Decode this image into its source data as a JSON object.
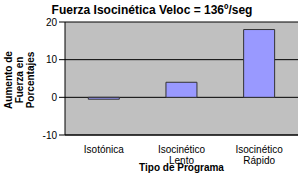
{
  "chart_data": {
    "type": "bar",
    "title": "Fuerza Isocinética Veloc = 136º/seg",
    "ylabel": "Aumento de Fuerza en Porcentajes",
    "xlabel": "Tipo de Programa",
    "categories": [
      "Isotónica",
      "Isocinético Lento",
      "Isocinético Rápido"
    ],
    "values": [
      -0.5,
      4,
      18
    ],
    "color": "#9999ff",
    "ylim": [
      -10,
      20
    ],
    "yticks": [
      -10,
      0,
      10,
      20
    ],
    "grid": true
  }
}
